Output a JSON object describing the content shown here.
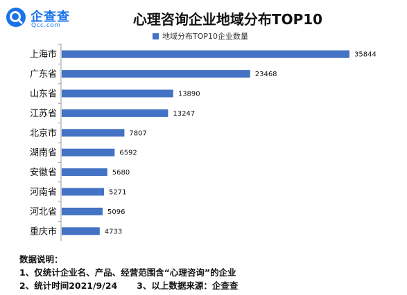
{
  "logo": {
    "name": "企查查",
    "domain": "Qcc.com",
    "icon": "qcc-magnifier-logo",
    "color": "#1a73e8"
  },
  "chart_data": {
    "type": "bar",
    "orientation": "horizontal",
    "title": "心理咨询企业地域分布TOP10",
    "categories": [
      "上海市",
      "广东省",
      "山东省",
      "江苏省",
      "北京市",
      "湖南省",
      "安徽省",
      "河南省",
      "河北省",
      "重庆市"
    ],
    "series": [
      {
        "name": "地域分布TOP10企业数量",
        "values": [
          35844,
          23468,
          13890,
          13247,
          7807,
          6592,
          5680,
          5271,
          5096,
          4733
        ],
        "color": "#4472c4"
      }
    ],
    "xlim": [
      0,
      38000
    ],
    "grid": false,
    "legend_position": "top"
  },
  "notes": {
    "heading": "数据说明：",
    "line1": "1、仅统计企业名、产品、经营范围含“心理咨询”的企业",
    "line2_a": "2、统计时间2021/9/24",
    "line2_b": "3、以上数据来源：企查查"
  }
}
